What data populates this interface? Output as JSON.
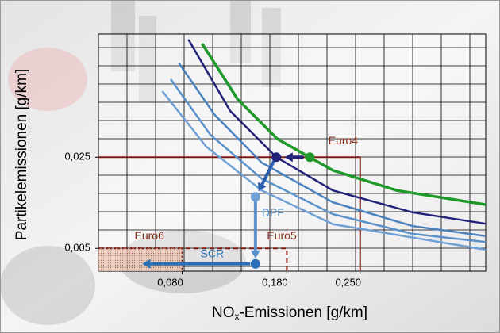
{
  "chart_data": {
    "type": "line",
    "x_label": [
      "NO",
      "x",
      "-Emissionen [g/km]"
    ],
    "y_label": "Partikelemissionen [g/km]",
    "xlim": [
      0,
      0.37
    ],
    "ylim": [
      0,
      0.052
    ],
    "xticks": [
      {
        "value": 0.08,
        "label": "0,080"
      },
      {
        "value": 0.18,
        "label": "0,180"
      },
      {
        "value": 0.25,
        "label": "0,250"
      }
    ],
    "yticks": [
      {
        "value": 0.005,
        "label": "0,005"
      },
      {
        "value": 0.025,
        "label": "0,025"
      }
    ],
    "series": [
      {
        "color": "#6fa0d4",
        "x": [
          0.061,
          0.103,
          0.156,
          0.224,
          0.37
        ],
        "values": [
          0.0395,
          0.0273,
          0.0177,
          0.0103,
          0.0047
        ]
      },
      {
        "color": "#5b92cc",
        "x": [
          0.069,
          0.107,
          0.156,
          0.224,
          0.3,
          0.37
        ],
        "values": [
          0.0421,
          0.0299,
          0.0203,
          0.0125,
          0.0082,
          0.0064
        ]
      },
      {
        "color": "#4a82c0",
        "x": [
          0.077,
          0.111,
          0.156,
          0.224,
          0.3,
          0.37
        ],
        "values": [
          0.0456,
          0.0343,
          0.0238,
          0.0151,
          0.0099,
          0.0077
        ]
      },
      {
        "color": "#23237a",
        "x": [
          0.086,
          0.126,
          0.17,
          0.224,
          0.3,
          0.37
        ],
        "values": [
          0.0508,
          0.0351,
          0.025,
          0.0177,
          0.0129,
          0.0104
        ]
      },
      {
        "color": "#1f9a2a",
        "x": [
          0.099,
          0.133,
          0.171,
          0.224,
          0.285,
          0.37
        ],
        "values": [
          0.0499,
          0.0377,
          0.029,
          0.0221,
          0.0177,
          0.0146
        ]
      }
    ],
    "limits": [
      {
        "name": "Euro4",
        "x": 0.25,
        "y": 0.025,
        "style": "solid"
      },
      {
        "name": "Euro5",
        "x": 0.18,
        "y": 0.005,
        "style": "dashed"
      },
      {
        "name": "Euro6",
        "x": 0.08,
        "y": 0.005,
        "style": "dotted"
      }
    ],
    "points": [
      {
        "x": 0.202,
        "y": 0.025,
        "color": "#1f9a2a"
      },
      {
        "x": 0.17,
        "y": 0.025,
        "color": "#23237a"
      },
      {
        "x": 0.15,
        "y": 0.0163,
        "color": "#6fa0d4"
      },
      {
        "x": 0.15,
        "y": 0.0016,
        "color": "#2a6fb5"
      }
    ],
    "arrows": [
      {
        "from": [
          0.196,
          0.025
        ],
        "to": [
          0.178,
          0.025
        ],
        "color": "#23237a"
      },
      {
        "from": [
          0.168,
          0.0243
        ],
        "to": [
          0.153,
          0.0175
        ],
        "color": "#2a5fb0"
      },
      {
        "name": "DPF",
        "from": [
          0.15,
          0.0155
        ],
        "to": [
          0.15,
          0.0028
        ],
        "color": "#5b92cc"
      },
      {
        "name": "SCR",
        "from": [
          0.145,
          0.0016
        ],
        "to": [
          0.042,
          0.0016
        ],
        "color": "#2a6fb5"
      }
    ]
  }
}
